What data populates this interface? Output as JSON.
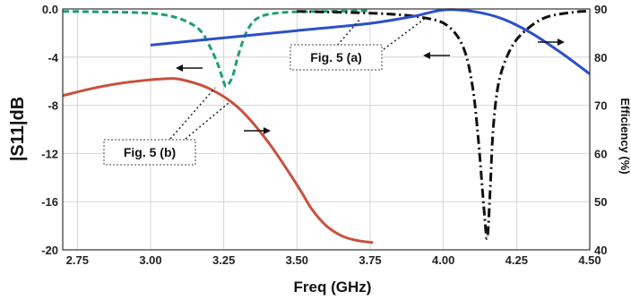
{
  "chart_data": {
    "type": "line",
    "xlabel": "Freq (GHz)",
    "ylabel_left": "|S11|dB",
    "ylabel_right": "Efficiency (%)",
    "x_ticks": [
      "2.75",
      "3.00",
      "3.25",
      "3.50",
      "3.75",
      "4.00",
      "4.25",
      "4.50"
    ],
    "y_left_ticks": [
      "0.0",
      "-4",
      "-8",
      "-12",
      "-16",
      "-20"
    ],
    "y_right_ticks": [
      "90",
      "80",
      "70",
      "60",
      "50",
      "40"
    ],
    "xlim": [
      2.7,
      4.5
    ],
    "ylim_left": [
      -20,
      0
    ],
    "ylim_right": [
      40,
      90
    ],
    "grid": true,
    "annotations": [
      "Fig. 5 (a)",
      "Fig. 5 (b)"
    ],
    "series": [
      {
        "axis": "left",
        "color": "#1f9e74",
        "style": "dashed",
        "points": [
          [
            2.7,
            -0.2
          ],
          [
            2.95,
            -0.3
          ],
          [
            3.05,
            -0.5
          ],
          [
            3.12,
            -1.0
          ],
          [
            3.17,
            -1.8
          ],
          [
            3.2,
            -3.0
          ],
          [
            3.23,
            -4.6
          ],
          [
            3.25,
            -6.1
          ],
          [
            3.26,
            -6.4
          ],
          [
            3.28,
            -5.6
          ],
          [
            3.3,
            -3.8
          ],
          [
            3.33,
            -1.8
          ],
          [
            3.37,
            -0.7
          ],
          [
            3.45,
            -0.3
          ],
          [
            3.6,
            -0.2
          ],
          [
            3.75,
            -0.15
          ]
        ]
      },
      {
        "axis": "left",
        "color": "#111111",
        "style": "dashdot",
        "points": [
          [
            3.5,
            -0.2
          ],
          [
            3.8,
            -0.4
          ],
          [
            3.95,
            -0.8
          ],
          [
            4.02,
            -1.5
          ],
          [
            4.07,
            -3.3
          ],
          [
            4.1,
            -6.5
          ],
          [
            4.12,
            -11.0
          ],
          [
            4.14,
            -17.0
          ],
          [
            4.15,
            -19.0
          ],
          [
            4.16,
            -15.0
          ],
          [
            4.17,
            -10.0
          ],
          [
            4.19,
            -6.0
          ],
          [
            4.23,
            -3.3
          ],
          [
            4.28,
            -1.8
          ],
          [
            4.35,
            -0.7
          ],
          [
            4.45,
            -0.25
          ],
          [
            4.5,
            -0.2
          ]
        ]
      },
      {
        "axis": "right",
        "color": "#2b50c8",
        "style": "solid",
        "points": [
          [
            3.0,
            82.5
          ],
          [
            3.25,
            84.0
          ],
          [
            3.5,
            85.5
          ],
          [
            3.75,
            87.0
          ],
          [
            3.9,
            88.5
          ],
          [
            4.0,
            89.8
          ],
          [
            4.1,
            89.5
          ],
          [
            4.2,
            88.0
          ],
          [
            4.3,
            85.0
          ],
          [
            4.4,
            81.0
          ],
          [
            4.5,
            76.5
          ]
        ]
      },
      {
        "axis": "right",
        "color": "#c9503e",
        "style": "solid",
        "points": [
          [
            2.7,
            72.0
          ],
          [
            2.8,
            73.5
          ],
          [
            2.9,
            74.6
          ],
          [
            3.0,
            75.3
          ],
          [
            3.05,
            75.5
          ],
          [
            3.1,
            75.4
          ],
          [
            3.2,
            73.5
          ],
          [
            3.3,
            69.5
          ],
          [
            3.4,
            62.5
          ],
          [
            3.5,
            53.5
          ],
          [
            3.55,
            48.5
          ],
          [
            3.6,
            45.0
          ],
          [
            3.65,
            43.0
          ],
          [
            3.7,
            42.0
          ],
          [
            3.76,
            41.5
          ]
        ]
      }
    ]
  }
}
